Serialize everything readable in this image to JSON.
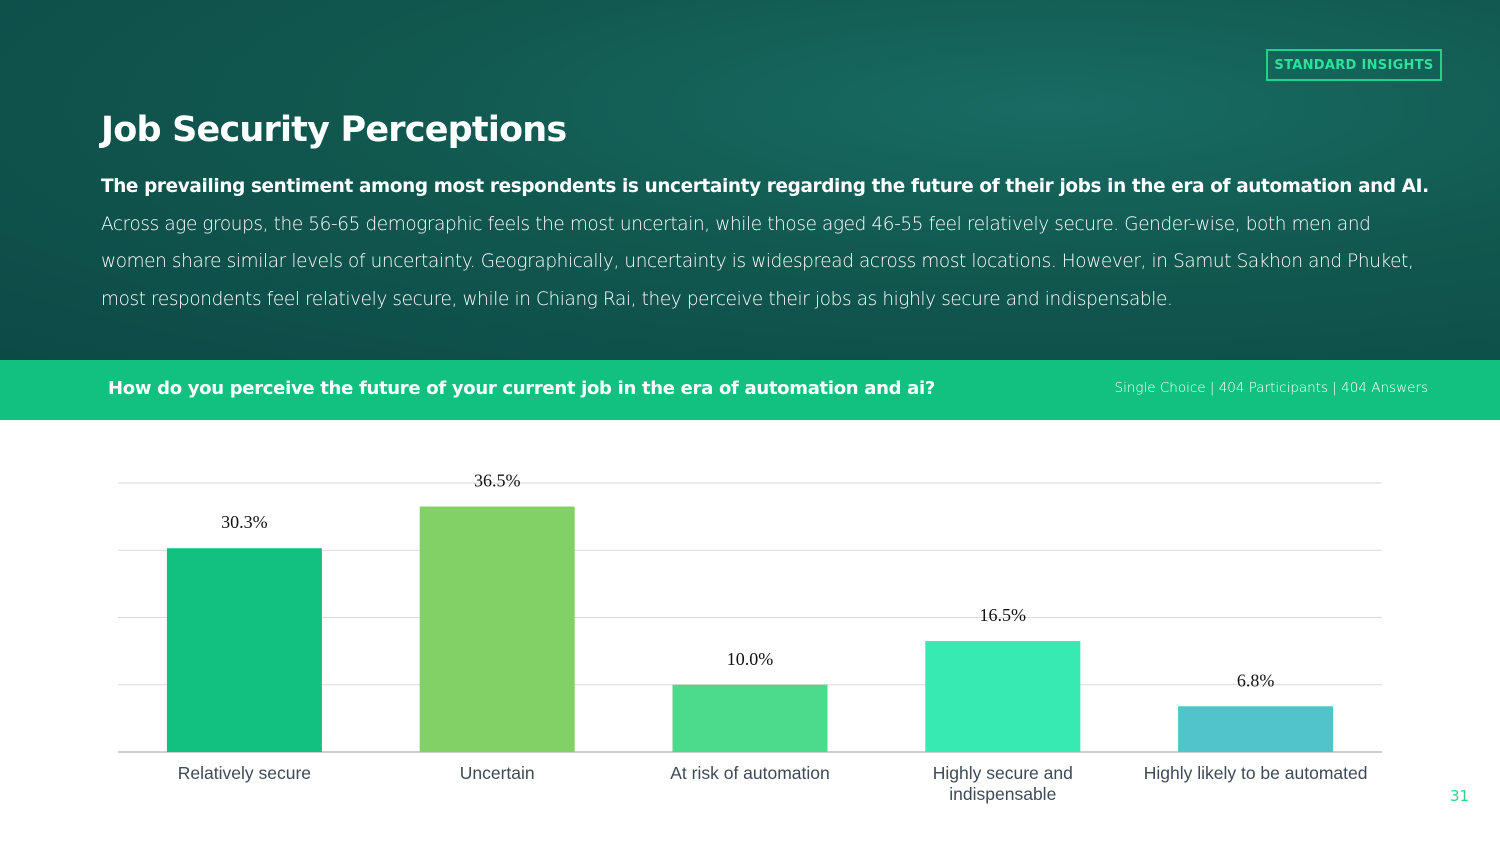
{
  "badge": "STANDARD INSIGHTS",
  "title": "Job Security Perceptions",
  "summary": {
    "bold": "The prevailing sentiment among most respondents is uncertainty regarding the future of their jobs in the era of automation and AI.",
    "rest": " Across age groups, the 56-65 demographic feels the most uncertain, while those aged 46-55 feel relatively secure. Gender-wise, both men and women share similar levels of uncertainty. Geographically, uncertainty is widespread across most locations. However, in Samut Sakhon and Phuket, most respondents feel relatively secure, while in Chiang Rai, they perceive their jobs as highly secure and indispensable."
  },
  "question": "How do you perceive the future of your current job in the era of automation and ai?",
  "meta": "Single Choice |  404 Participants | 404 Answers",
  "page_number": "31",
  "colors": {
    "header_bg": "#11584f",
    "question_bar": "#12c17f",
    "accent": "#2fe09a"
  },
  "chart_data": {
    "type": "bar",
    "categories": [
      "Relatively secure",
      "Uncertain",
      "At risk of automation",
      "Highly secure and indispensable",
      "Highly likely to be automated"
    ],
    "category_lines": [
      [
        "Relatively secure"
      ],
      [
        "Uncertain"
      ],
      [
        "At risk of automation"
      ],
      [
        "Highly secure and",
        "indispensable"
      ],
      [
        "Highly likely to be automated"
      ]
    ],
    "values": [
      30.3,
      36.5,
      10.0,
      16.5,
      6.8
    ],
    "value_labels": [
      "30.3%",
      "36.5%",
      "10.0%",
      "16.5%",
      "6.8%"
    ],
    "bar_colors": [
      "#12c17f",
      "#82d166",
      "#4cdb8c",
      "#36eab2",
      "#50c4c9"
    ],
    "ylim": [
      0,
      40
    ],
    "grid": true,
    "title": "",
    "xlabel": "",
    "ylabel": ""
  }
}
